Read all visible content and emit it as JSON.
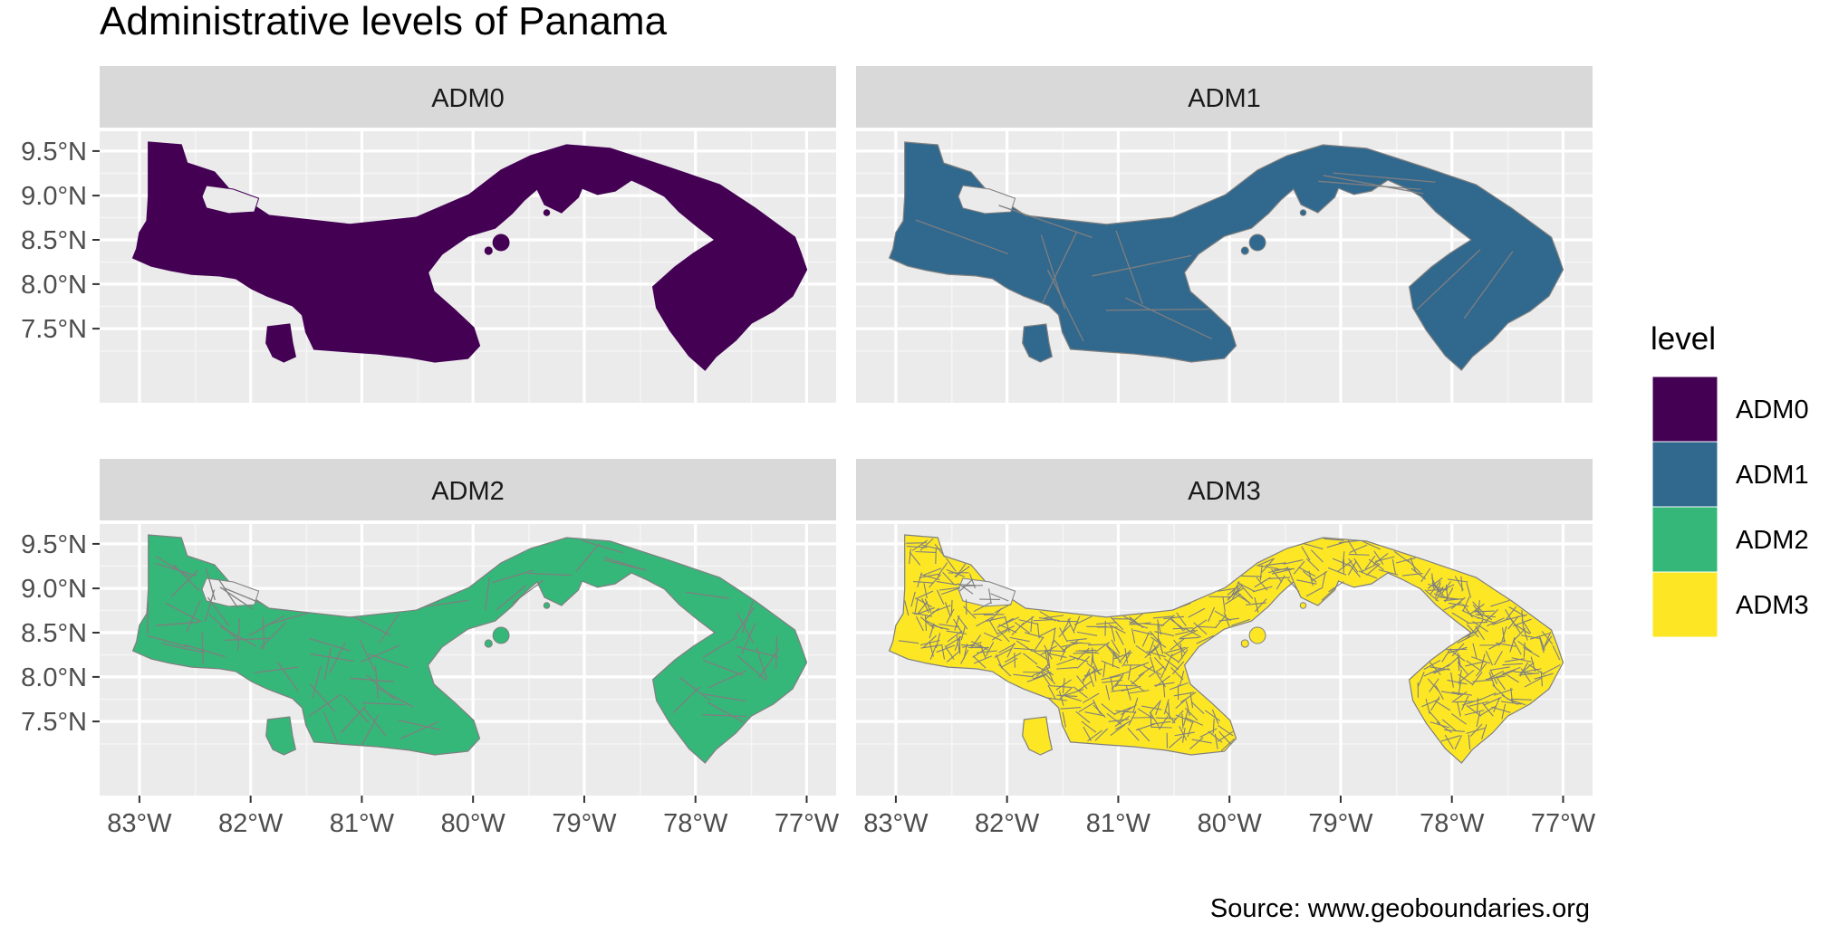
{
  "title": "Administrative levels of Panama",
  "caption": "Source: www.geoboundaries.org",
  "legend": {
    "title": "level",
    "entries": [
      {
        "label": "ADM0",
        "color": "#440154"
      },
      {
        "label": "ADM1",
        "color": "#31688E"
      },
      {
        "label": "ADM2",
        "color": "#35B779"
      },
      {
        "label": "ADM3",
        "color": "#FDE725"
      }
    ]
  },
  "axes": {
    "x_ticks": [
      "83°W",
      "82°W",
      "81°W",
      "80°W",
      "79°W",
      "78°W",
      "77°W"
    ],
    "y_ticks": [
      "9.5°N",
      "9.0°N",
      "8.5°N",
      "8.0°N",
      "7.5°N"
    ]
  },
  "map": {
    "region": "Panama",
    "border_color": "#7f7f7f",
    "panels": [
      {
        "label": "ADM0",
        "level": 0,
        "fill": "#440154"
      },
      {
        "label": "ADM1",
        "level": 1,
        "fill": "#31688E"
      },
      {
        "label": "ADM2",
        "level": 2,
        "fill": "#35B779"
      },
      {
        "label": "ADM3",
        "level": 3,
        "fill": "#FDE725"
      }
    ]
  }
}
